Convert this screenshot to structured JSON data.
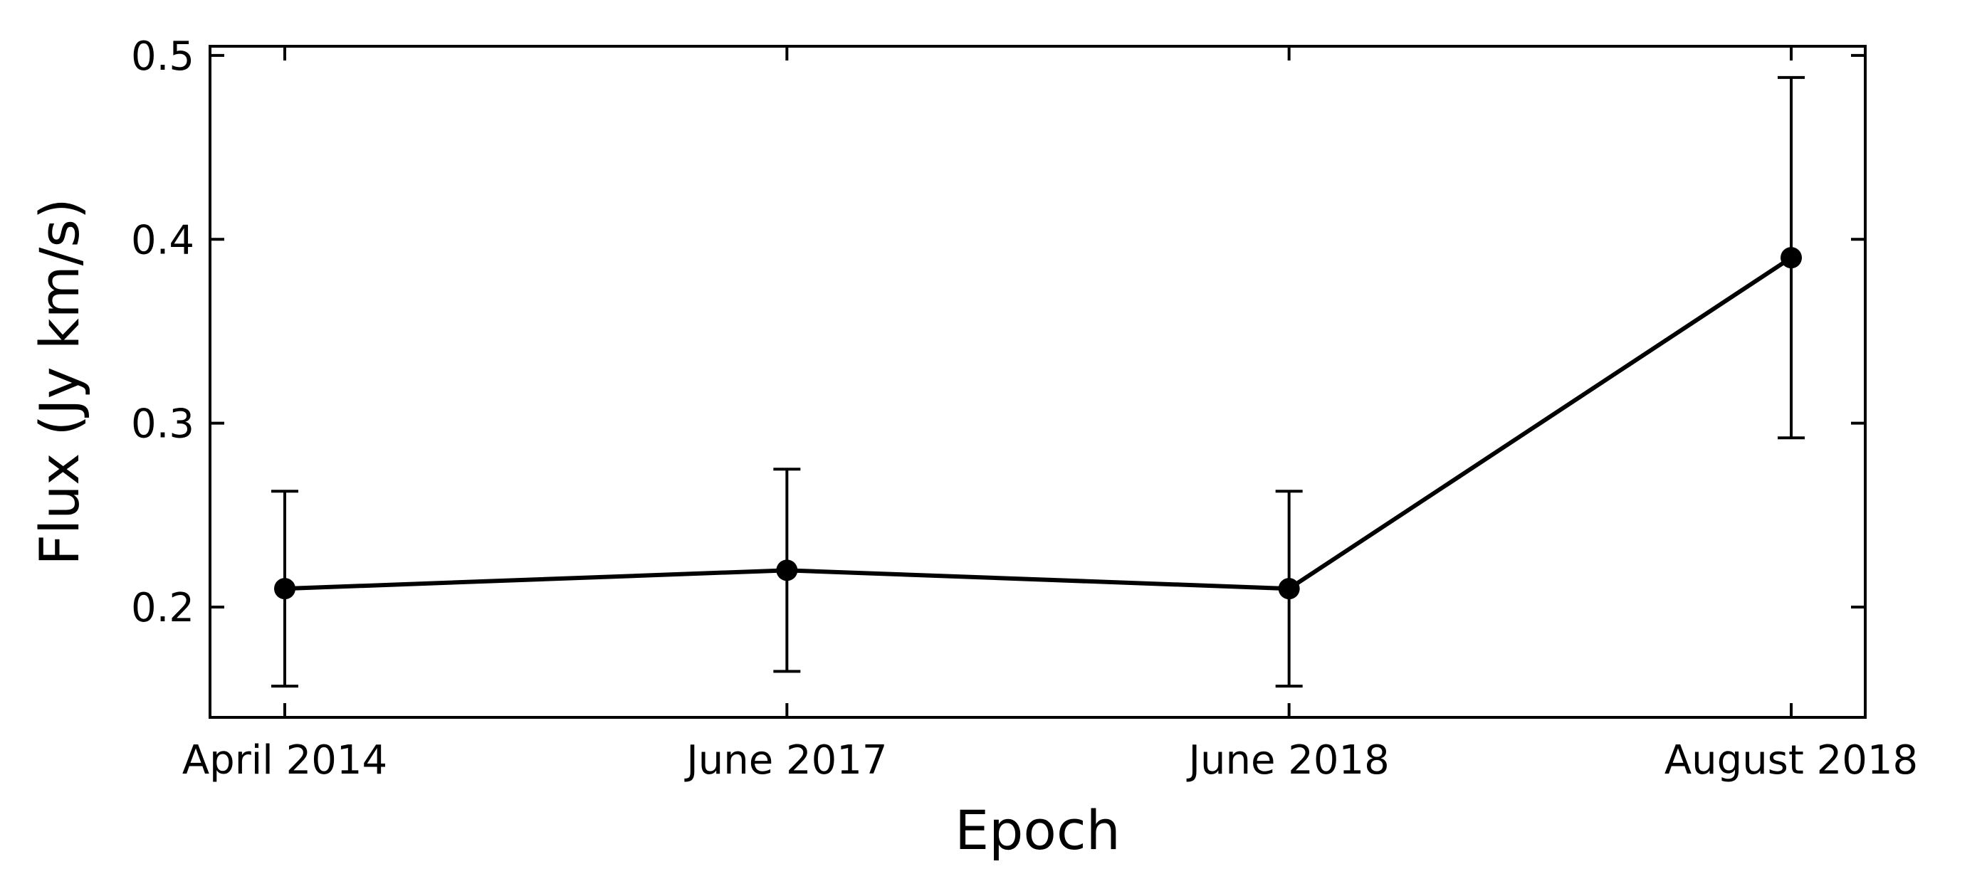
{
  "chart_data": {
    "type": "line",
    "title": "",
    "xlabel": "Epoch",
    "ylabel": "Flux (Jy km/s)",
    "categories": [
      "April 2014",
      "June 2017",
      "June 2018",
      "August 2018"
    ],
    "series": [
      {
        "values": [
          0.21,
          0.22,
          0.21,
          0.39
        ],
        "errors": [
          0.053,
          0.055,
          0.053,
          0.098
        ]
      }
    ],
    "yticks": [
      "0.2",
      "0.3",
      "0.4",
      "0.5"
    ],
    "ylim": [
      0.14,
      0.505
    ],
    "grid": false,
    "legend": "none",
    "tick_direction": "in",
    "line_color": "#000000",
    "marker": "filled-circle"
  }
}
